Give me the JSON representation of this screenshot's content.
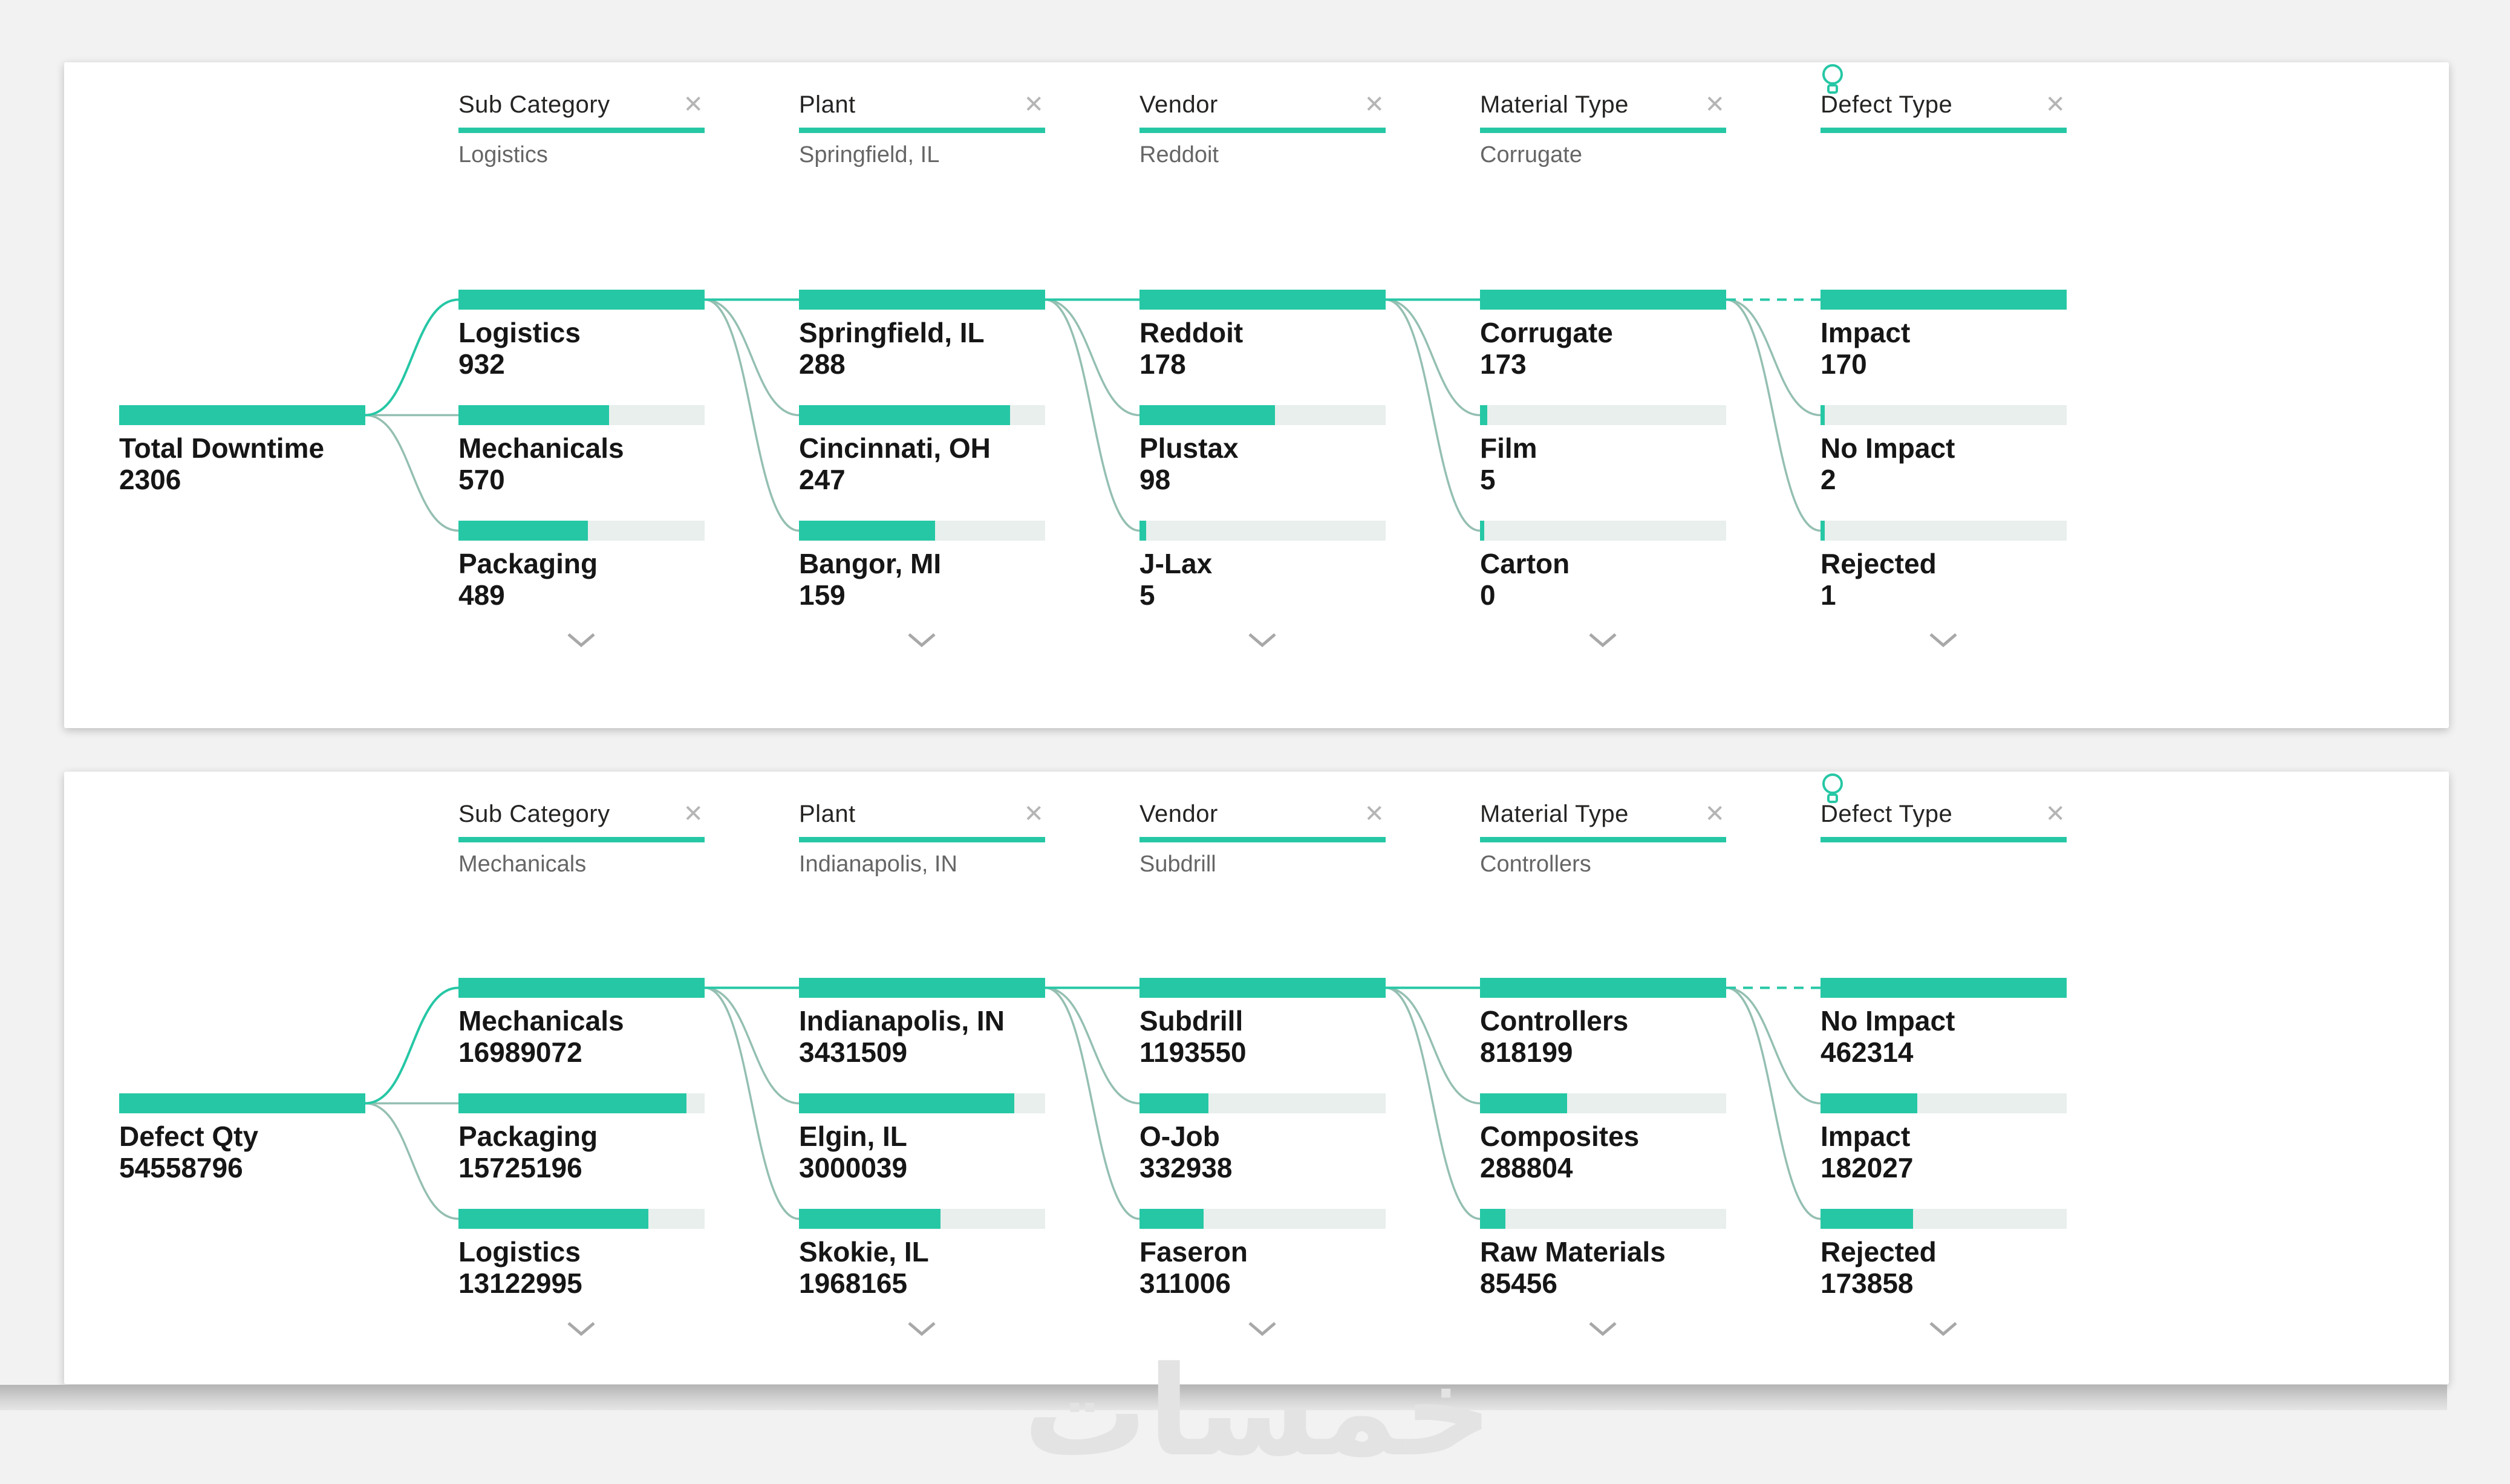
{
  "colors": {
    "accent": "#26c7a5",
    "connector": "#94bfb2",
    "track": "#e8efec",
    "underline": "#26c7a5"
  },
  "icons": {
    "close": "✕",
    "bulb": "bulb-icon",
    "chevron": "chevron-down-icon"
  },
  "watermark": {
    "text": "خمسات"
  },
  "panels": [
    {
      "root": {
        "label": "Total Downtime",
        "value": "2306",
        "pct": 100
      },
      "columns": [
        {
          "header": {
            "label": "Sub Category",
            "subtitle": "Logistics",
            "ai": false
          },
          "nodes": [
            {
              "label": "Logistics",
              "value": "932",
              "pct": 100
            },
            {
              "label": "Mechanicals",
              "value": "570",
              "pct": 61.2
            },
            {
              "label": "Packaging",
              "value": "489",
              "pct": 52.5
            }
          ]
        },
        {
          "header": {
            "label": "Plant",
            "subtitle": "Springfield, IL",
            "ai": false
          },
          "nodes": [
            {
              "label": "Springfield, IL",
              "value": "288",
              "pct": 100
            },
            {
              "label": "Cincinnati, OH",
              "value": "247",
              "pct": 85.8
            },
            {
              "label": "Bangor, MI",
              "value": "159",
              "pct": 55.2
            }
          ]
        },
        {
          "header": {
            "label": "Vendor",
            "subtitle": "Reddoit",
            "ai": false
          },
          "nodes": [
            {
              "label": "Reddoit",
              "value": "178",
              "pct": 100
            },
            {
              "label": "Plustax",
              "value": "98",
              "pct": 55.1
            },
            {
              "label": "J-Lax",
              "value": "5",
              "pct": 2.8
            }
          ]
        },
        {
          "header": {
            "label": "Material Type",
            "subtitle": "Corrugate",
            "ai": false
          },
          "nodes": [
            {
              "label": "Corrugate",
              "value": "173",
              "pct": 100
            },
            {
              "label": "Film",
              "value": "5",
              "pct": 2.9
            },
            {
              "label": "Carton",
              "value": "0",
              "pct": 0
            }
          ]
        },
        {
          "header": {
            "label": "Defect Type",
            "subtitle": "",
            "ai": true
          },
          "nodes": [
            {
              "label": "Impact",
              "value": "170",
              "pct": 100
            },
            {
              "label": "No Impact",
              "value": "2",
              "pct": 1.2
            },
            {
              "label": "Rejected",
              "value": "1",
              "pct": 0.6
            }
          ]
        }
      ]
    },
    {
      "root": {
        "label": "Defect Qty",
        "value": "54558796",
        "pct": 100
      },
      "columns": [
        {
          "header": {
            "label": "Sub Category",
            "subtitle": "Mechanicals",
            "ai": false
          },
          "nodes": [
            {
              "label": "Mechanicals",
              "value": "16989072",
              "pct": 100
            },
            {
              "label": "Packaging",
              "value": "15725196",
              "pct": 92.6
            },
            {
              "label": "Logistics",
              "value": "13122995",
              "pct": 77.2
            }
          ]
        },
        {
          "header": {
            "label": "Plant",
            "subtitle": "Indianapolis, IN",
            "ai": false
          },
          "nodes": [
            {
              "label": "Indianapolis, IN",
              "value": "3431509",
              "pct": 100
            },
            {
              "label": "Elgin, IL",
              "value": "3000039",
              "pct": 87.4
            },
            {
              "label": "Skokie, IL",
              "value": "1968165",
              "pct": 57.4
            }
          ]
        },
        {
          "header": {
            "label": "Vendor",
            "subtitle": "Subdrill",
            "ai": false
          },
          "nodes": [
            {
              "label": "Subdrill",
              "value": "1193550",
              "pct": 100
            },
            {
              "label": "O-Job",
              "value": "332938",
              "pct": 27.9
            },
            {
              "label": "Faseron",
              "value": "311006",
              "pct": 26.1
            }
          ]
        },
        {
          "header": {
            "label": "Material Type",
            "subtitle": "Controllers",
            "ai": false
          },
          "nodes": [
            {
              "label": "Controllers",
              "value": "818199",
              "pct": 100
            },
            {
              "label": "Composites",
              "value": "288804",
              "pct": 35.3
            },
            {
              "label": "Raw Materials",
              "value": "85456",
              "pct": 10.4
            }
          ]
        },
        {
          "header": {
            "label": "Defect Type",
            "subtitle": "",
            "ai": true
          },
          "nodes": [
            {
              "label": "No Impact",
              "value": "462314",
              "pct": 100
            },
            {
              "label": "Impact",
              "value": "182027",
              "pct": 39.4
            },
            {
              "label": "Rejected",
              "value": "173858",
              "pct": 37.6
            }
          ]
        }
      ]
    }
  ]
}
